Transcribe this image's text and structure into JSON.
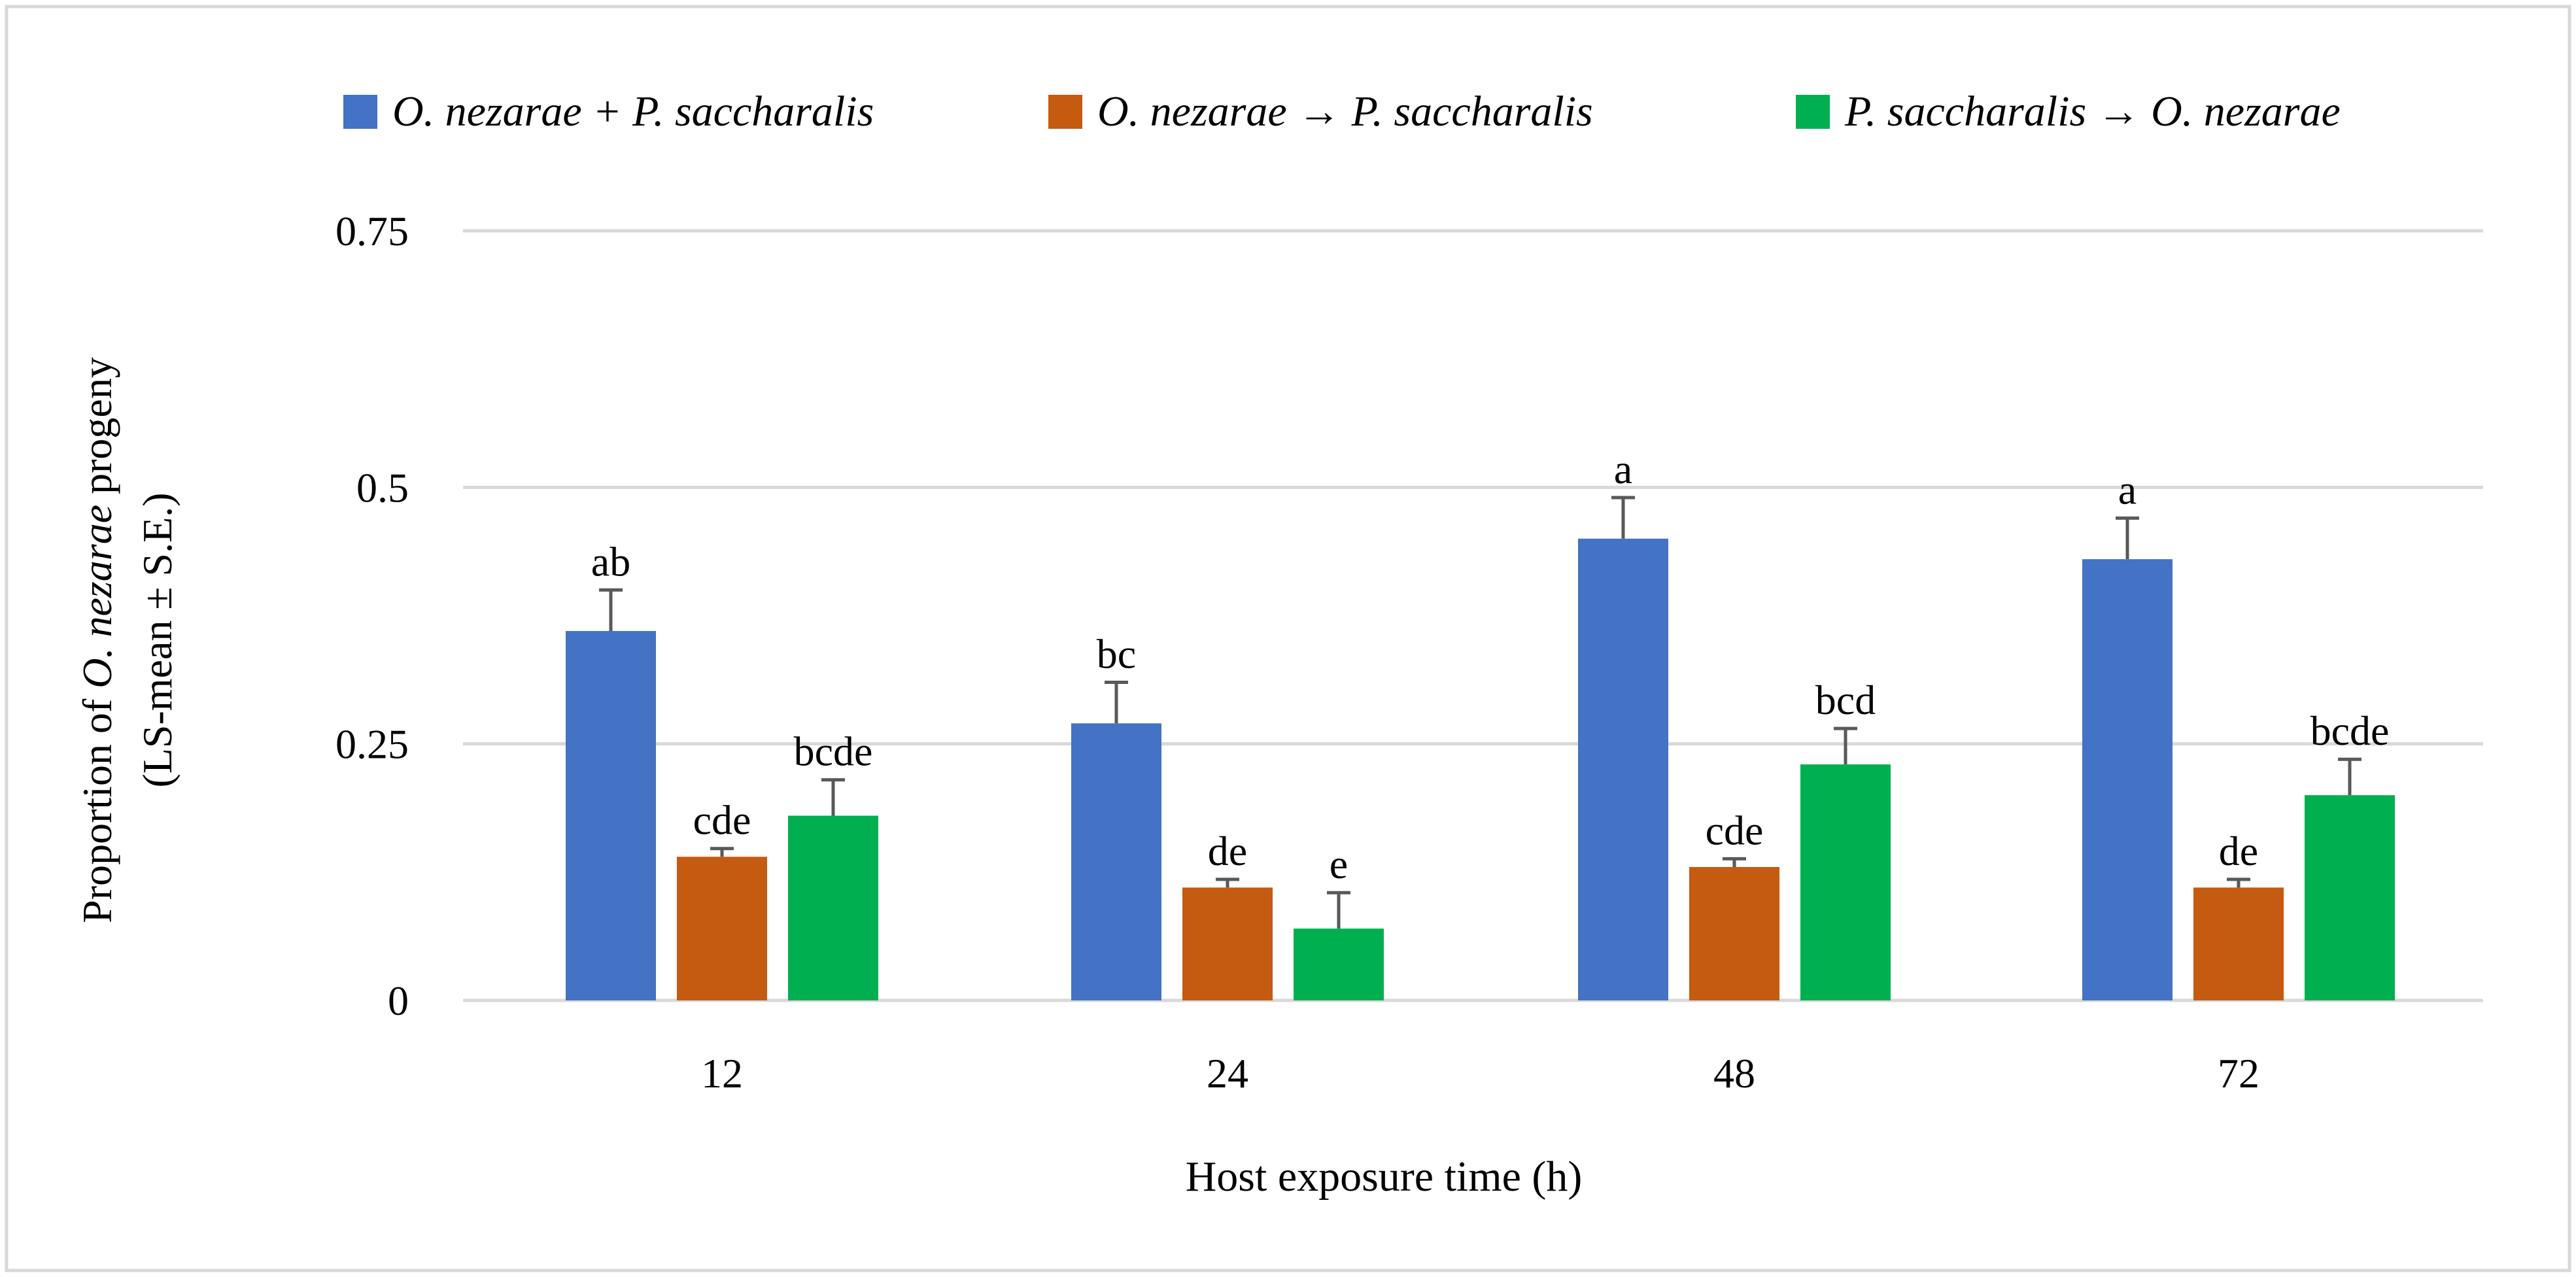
{
  "chart_data": {
    "type": "bar",
    "title": "",
    "xlabel": "Host exposure time (h)",
    "ylabel_line1_prefix": "Proportion of ",
    "ylabel_line1_italic": "O. nezarae",
    "ylabel_line1_suffix": " progeny",
    "ylabel_line2": "(LS-mean ± S.E.)",
    "categories": [
      "12",
      "24",
      "48",
      "72"
    ],
    "ylim": [
      0,
      0.75
    ],
    "yticks": [
      0,
      0.25,
      0.5,
      0.75
    ],
    "ytick_labels": [
      "0",
      "0.25",
      "0.5",
      "0.75"
    ],
    "grid": true,
    "legend_position": "top",
    "series": [
      {
        "name": "O. nezarae + P. saccharalis",
        "color": "#4472C4",
        "values": [
          0.36,
          0.27,
          0.45,
          0.43
        ],
        "errors": [
          0.04,
          0.04,
          0.04,
          0.04
        ],
        "letters": [
          "ab",
          "bc",
          "a",
          "a"
        ]
      },
      {
        "name": "O. nezarae → P. saccharalis",
        "color": "#C55A11",
        "values": [
          0.14,
          0.11,
          0.13,
          0.11
        ],
        "errors": [
          0.008,
          0.008,
          0.008,
          0.008
        ],
        "letters": [
          "cde",
          "de",
          "cde",
          "de"
        ]
      },
      {
        "name": "P. saccharalis  → O. nezarae",
        "color": "#00B050",
        "values": [
          0.18,
          0.07,
          0.23,
          0.2
        ],
        "errors": [
          0.035,
          0.035,
          0.035,
          0.035
        ],
        "letters": [
          "bcde",
          "e",
          "bcd",
          "bcde"
        ]
      }
    ],
    "gridline_color": "#D9D9D9",
    "errorbar_color": "#595959",
    "border_color": "#D9D9D9"
  }
}
